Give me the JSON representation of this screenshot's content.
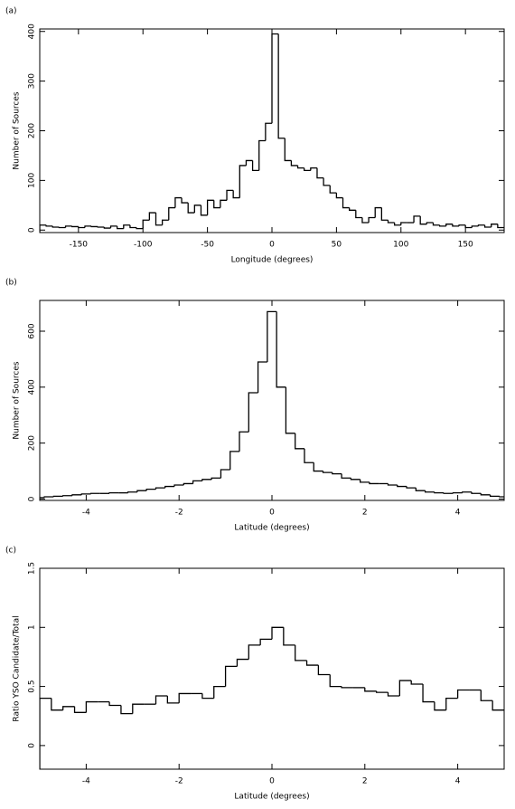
{
  "chart_data": [
    {
      "type": "histogram",
      "label": "(a)",
      "xlabel": "Longitude (degrees)",
      "ylabel": "Number of Sources",
      "color": "#000000",
      "bins": [
        -180,
        -175,
        -170,
        -165,
        -160,
        -155,
        -150,
        -145,
        -140,
        -135,
        -130,
        -125,
        -120,
        -115,
        -110,
        -105,
        -100,
        -95,
        -90,
        -85,
        -80,
        -75,
        -70,
        -65,
        -60,
        -55,
        -50,
        -45,
        -40,
        -35,
        -30,
        -25,
        -20,
        -15,
        -10,
        -5,
        0,
        5,
        10,
        15,
        20,
        25,
        30,
        35,
        40,
        45,
        50,
        55,
        60,
        65,
        70,
        75,
        80,
        85,
        90,
        95,
        100,
        105,
        110,
        115,
        120,
        125,
        130,
        135,
        140,
        145,
        150,
        155,
        160,
        165,
        170,
        175,
        180
      ],
      "values": [
        10,
        8,
        6,
        5,
        8,
        7,
        5,
        8,
        7,
        6,
        4,
        8,
        3,
        10,
        5,
        3,
        20,
        35,
        10,
        20,
        45,
        65,
        55,
        35,
        50,
        30,
        60,
        45,
        60,
        80,
        65,
        130,
        140,
        120,
        180,
        215,
        395,
        185,
        140,
        130,
        125,
        120,
        125,
        105,
        90,
        75,
        65,
        45,
        40,
        25,
        15,
        25,
        45,
        20,
        15,
        10,
        15,
        15,
        28,
        12,
        15,
        10,
        8,
        12,
        8,
        10,
        5,
        8,
        10,
        6,
        12,
        5
      ],
      "xlim": [
        -180,
        180
      ],
      "ylim": [
        -5,
        405
      ],
      "xticks": [
        -150,
        -100,
        -50,
        0,
        50,
        100,
        150
      ],
      "yticks": [
        0,
        100,
        200,
        300,
        400
      ]
    },
    {
      "type": "histogram",
      "label": "(b)",
      "xlabel": "Latitude (degrees)",
      "ylabel": "Number of Sources",
      "color": "#000000",
      "bins": [
        -5.1,
        -4.9,
        -4.7,
        -4.5,
        -4.3,
        -4.1,
        -3.9,
        -3.7,
        -3.5,
        -3.3,
        -3.1,
        -2.9,
        -2.7,
        -2.5,
        -2.3,
        -2.1,
        -1.9,
        -1.7,
        -1.5,
        -1.3,
        -1.1,
        -0.9,
        -0.7,
        -0.5,
        -0.3,
        -0.1,
        0.1,
        0.3,
        0.5,
        0.7,
        0.9,
        1.1,
        1.3,
        1.5,
        1.7,
        1.9,
        2.1,
        2.3,
        2.5,
        2.7,
        2.9,
        3.1,
        3.3,
        3.5,
        3.7,
        3.9,
        4.1,
        4.3,
        4.5,
        4.7,
        4.9,
        5.1
      ],
      "values": [
        5,
        8,
        10,
        12,
        15,
        18,
        20,
        20,
        22,
        22,
        25,
        30,
        35,
        40,
        45,
        50,
        55,
        65,
        70,
        75,
        105,
        170,
        240,
        380,
        490,
        670,
        400,
        235,
        180,
        130,
        100,
        95,
        90,
        75,
        70,
        60,
        55,
        55,
        50,
        45,
        40,
        30,
        25,
        22,
        20,
        22,
        25,
        20,
        15,
        10,
        8
      ],
      "xlim": [
        -5,
        5
      ],
      "ylim": [
        -5,
        710
      ],
      "xticks": [
        -4,
        -2,
        0,
        2,
        4
      ],
      "yticks": [
        0,
        200,
        400,
        600
      ]
    },
    {
      "type": "histogram",
      "label": "(c)",
      "xlabel": "Latitude (degrees)",
      "ylabel": "Ratio YSO Candidate/Total",
      "color": "#000000",
      "bins": [
        -5,
        -4.75,
        -4.5,
        -4.25,
        -4,
        -3.75,
        -3.5,
        -3.25,
        -3,
        -2.75,
        -2.5,
        -2.25,
        -2,
        -1.75,
        -1.5,
        -1.25,
        -1,
        -0.75,
        -0.5,
        -0.25,
        0,
        0.25,
        0.5,
        0.75,
        1,
        1.25,
        1.5,
        1.75,
        2,
        2.25,
        2.5,
        2.75,
        3,
        3.25,
        3.5,
        3.75,
        4,
        4.25,
        4.5,
        4.75,
        5
      ],
      "values": [
        0.4,
        0.3,
        0.33,
        0.28,
        0.37,
        0.37,
        0.34,
        0.27,
        0.35,
        0.35,
        0.42,
        0.36,
        0.44,
        0.44,
        0.4,
        0.5,
        0.67,
        0.73,
        0.85,
        0.9,
        1.0,
        0.85,
        0.72,
        0.68,
        0.6,
        0.5,
        0.49,
        0.49,
        0.46,
        0.45,
        0.42,
        0.55,
        0.52,
        0.37,
        0.3,
        0.4,
        0.47,
        0.47,
        0.38,
        0.3
      ],
      "xlim": [
        -5,
        5
      ],
      "ylim": [
        -0.2,
        1.5
      ],
      "xticks": [
        -4,
        -2,
        0,
        2,
        4
      ],
      "yticks": [
        0,
        0.5,
        1,
        1.5
      ]
    }
  ]
}
